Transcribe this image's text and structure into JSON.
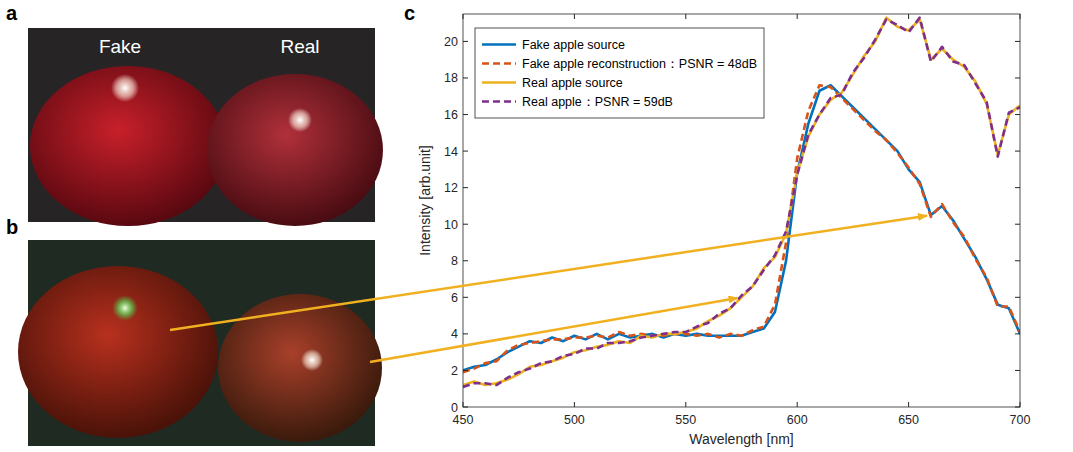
{
  "panels": [
    {
      "label": "a",
      "texts": [
        "Fake",
        "Real"
      ]
    },
    {
      "label": "b"
    },
    {
      "label": "c"
    }
  ],
  "chart_data": {
    "type": "line",
    "x_label": "Wavelength [nm]",
    "y_label": "Intensity [arb.unit]",
    "x": [
      450,
      455,
      460,
      465,
      470,
      475,
      480,
      485,
      490,
      495,
      500,
      505,
      510,
      515,
      520,
      525,
      530,
      535,
      540,
      545,
      550,
      555,
      560,
      565,
      570,
      575,
      580,
      585,
      590,
      595,
      600,
      605,
      610,
      615,
      620,
      625,
      630,
      635,
      640,
      645,
      650,
      655,
      660,
      665,
      670,
      675,
      680,
      685,
      690,
      695,
      700
    ],
    "series": [
      {
        "name": "Fake apple source",
        "color": "#0072bd",
        "line_style": "solid",
        "values": [
          2,
          2.2,
          2.3,
          2.6,
          3,
          3.3,
          3.6,
          3.5,
          3.8,
          3.6,
          3.9,
          3.7,
          4,
          3.7,
          4,
          3.8,
          3.9,
          4,
          3.8,
          4,
          3.9,
          4,
          3.9,
          3.9,
          3.9,
          3.9,
          4.1,
          4.3,
          5.2,
          8,
          12.8,
          15.5,
          17.3,
          17.6,
          17,
          16.4,
          15.8,
          15.2,
          14.6,
          14,
          13,
          12.3,
          10.5,
          11,
          10.2,
          9.2,
          8.2,
          7,
          5.6,
          5.4,
          4
        ]
      },
      {
        "name": "Fake apple reconstruction：PSNR = 48dB",
        "color": "#d95319",
        "line_style": "dashed",
        "values": [
          1.9,
          2.1,
          2.4,
          2.5,
          3.1,
          3.4,
          3.5,
          3.6,
          3.7,
          3.7,
          3.8,
          3.8,
          3.9,
          3.8,
          4.1,
          3.9,
          4,
          3.9,
          3.9,
          4,
          4,
          3.9,
          4,
          3.8,
          4,
          3.9,
          4.2,
          4.4,
          5.6,
          9,
          13.6,
          16.2,
          17.6,
          17.5,
          16.9,
          16.3,
          15.7,
          15.1,
          14.6,
          13.9,
          13.1,
          12.2,
          10.4,
          11.1,
          10.1,
          9.3,
          8.1,
          7.1,
          5.5,
          5.5,
          4.1
        ]
      },
      {
        "name": "Real apple source",
        "color": "#edb120",
        "line_style": "solid",
        "values": [
          1.2,
          1.4,
          1.2,
          1.3,
          1.5,
          1.8,
          2.2,
          2.3,
          2.5,
          2.7,
          3,
          3.1,
          3.3,
          3.4,
          3.6,
          3.5,
          3.9,
          3.8,
          4,
          4,
          4.1,
          4.3,
          4.7,
          5,
          5.4,
          6,
          6.6,
          7.6,
          8.2,
          9.5,
          12.8,
          14.8,
          16,
          16.8,
          17.2,
          18.2,
          19.2,
          20,
          21.3,
          20.8,
          20.6,
          21.2,
          19,
          19.6,
          19,
          18.6,
          17.8,
          16.6,
          13.8,
          16,
          16.5
        ]
      },
      {
        "name": "Real apple：PSNR = 59dB",
        "color": "#7e2f8e",
        "line_style": "dashed",
        "values": [
          1.1,
          1.3,
          1.3,
          1.2,
          1.6,
          1.9,
          2.1,
          2.4,
          2.5,
          2.8,
          2.9,
          3.2,
          3.2,
          3.5,
          3.5,
          3.6,
          3.8,
          3.9,
          4,
          4.1,
          4.1,
          4.4,
          4.6,
          5.1,
          5.4,
          6.1,
          6.6,
          7.5,
          8.3,
          9.6,
          12.7,
          14.9,
          16,
          16.9,
          17.1,
          18.3,
          19.1,
          20.1,
          21.2,
          20.9,
          20.5,
          21.3,
          18.9,
          19.7,
          18.9,
          18.7,
          17.7,
          16.7,
          13.7,
          16.1,
          16.4
        ]
      }
    ],
    "xlim": [
      450,
      700
    ],
    "xticks": [
      450,
      500,
      550,
      600,
      650,
      700
    ],
    "ylim": [
      0,
      21.5
    ],
    "yticks": [
      0,
      2,
      4,
      6,
      8,
      10,
      12,
      14,
      16,
      18,
      20
    ],
    "grid": false,
    "legend": "top-left"
  }
}
